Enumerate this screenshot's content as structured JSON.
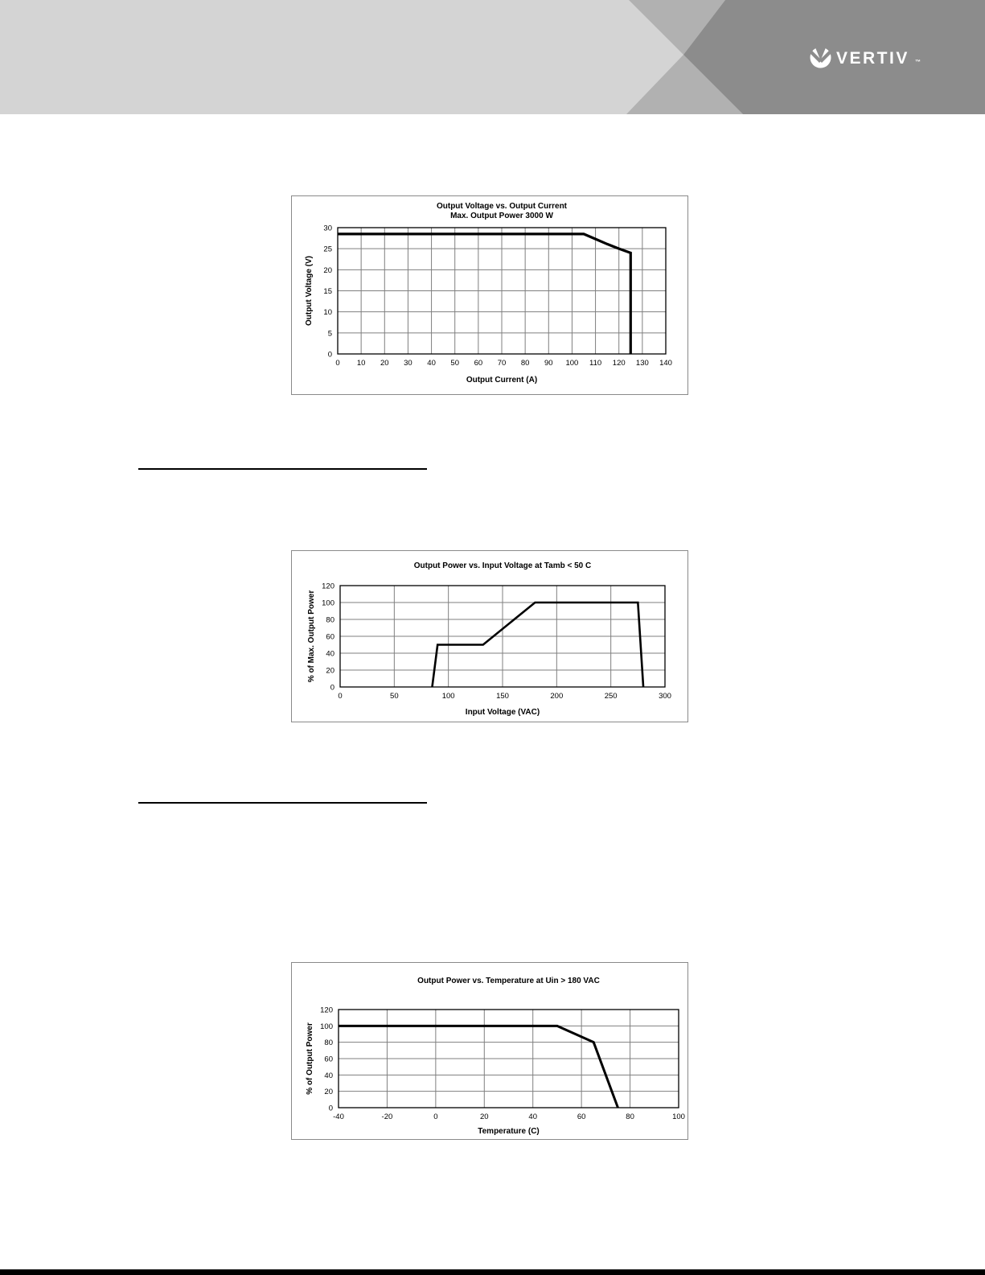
{
  "header": {
    "logo": {
      "brand": "VERTIV",
      "trademark": "™",
      "emblem_icon": "vertiv-circle-check-icon"
    },
    "colors": {
      "band_light": "#d4d4d4",
      "band_medium": "#b1b1b1",
      "band_dark": "#8c8c8c",
      "logo": "#ffffff"
    }
  },
  "dividers": {
    "rule_color": "#000000",
    "bottom_bar_color": "#000000"
  },
  "chart_data": [
    {
      "type": "line",
      "title": "Output Voltage vs. Output Current",
      "subtitle": "Max. Output Power 3000 W",
      "xlabel": "Output Current (A)",
      "ylabel": "Output Voltage (V)",
      "xlim": [
        0,
        140
      ],
      "ylim": [
        0,
        30
      ],
      "xticks": [
        0,
        10,
        20,
        30,
        40,
        50,
        60,
        70,
        80,
        90,
        100,
        110,
        120,
        130,
        140
      ],
      "yticks": [
        0,
        5,
        10,
        15,
        20,
        25,
        30
      ],
      "grid": true,
      "legend": false,
      "line_color": "#000000",
      "series": [
        {
          "name": "output-voltage-limit",
          "points": [
            [
              0,
              28.5
            ],
            [
              105,
              28.5
            ],
            [
              110,
              27.3
            ],
            [
              115,
              26.1
            ],
            [
              120,
              25
            ],
            [
              125,
              24
            ],
            [
              125,
              0
            ]
          ]
        }
      ]
    },
    {
      "type": "line",
      "title": "Output Power vs. Input Voltage at Tamb < 50 C",
      "subtitle": "",
      "xlabel": "Input Voltage (VAC)",
      "ylabel": "% of Max. Output Power",
      "xlim": [
        0,
        300
      ],
      "ylim": [
        0,
        120
      ],
      "xticks": [
        0,
        50,
        100,
        150,
        200,
        250,
        300
      ],
      "yticks": [
        0,
        20,
        40,
        60,
        80,
        100,
        120
      ],
      "grid": true,
      "legend": false,
      "line_color": "#000000",
      "series": [
        {
          "name": "output-power-vs-input-voltage",
          "points": [
            [
              85,
              0
            ],
            [
              90,
              50
            ],
            [
              132,
              50
            ],
            [
              180,
              100
            ],
            [
              275,
              100
            ],
            [
              280,
              0
            ]
          ]
        }
      ]
    },
    {
      "type": "line",
      "title": "Output Power vs. Temperature at Uin > 180 VAC",
      "subtitle": "",
      "xlabel": "Temperature (C)",
      "ylabel": "% of Output Power",
      "xlim": [
        -40,
        100
      ],
      "ylim": [
        0,
        120
      ],
      "xticks": [
        -40,
        -20,
        0,
        20,
        40,
        60,
        80,
        100
      ],
      "yticks": [
        0,
        20,
        40,
        60,
        80,
        100,
        120
      ],
      "grid": true,
      "legend": false,
      "line_color": "#000000",
      "series": [
        {
          "name": "output-power-vs-temperature",
          "points": [
            [
              -40,
              100
            ],
            [
              50,
              100
            ],
            [
              65,
              80
            ],
            [
              75,
              0
            ]
          ]
        }
      ]
    }
  ]
}
